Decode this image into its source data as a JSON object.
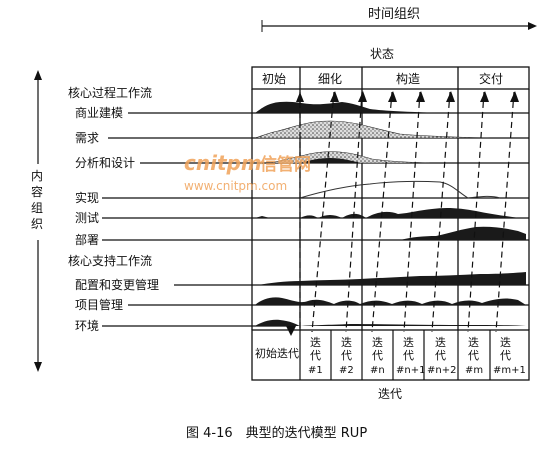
{
  "top_axis_label": "时间组织",
  "phase_header": "状态",
  "phases": [
    "初始",
    "细化",
    "构造",
    "交付"
  ],
  "left_axis_label": [
    "内",
    "容",
    "组",
    "织"
  ],
  "core_process_title": "核心过程工作流",
  "core_process_items": [
    "商业建模",
    "需求",
    "分析和设计",
    "实现",
    "测试",
    "部署"
  ],
  "core_support_title": "核心支持工作流",
  "core_support_items": [
    "配置和变更管理",
    "项目管理",
    "环境"
  ],
  "iterations": [
    {
      "chars": [
        "初始迭代"
      ]
    },
    {
      "chars": [
        "迭",
        "代",
        "#1"
      ]
    },
    {
      "chars": [
        "迭",
        "代",
        "#2"
      ]
    },
    {
      "chars": [
        "迭",
        "代",
        "#n"
      ]
    },
    {
      "chars": [
        "迭",
        "代",
        "#n+1"
      ]
    },
    {
      "chars": [
        "迭",
        "代",
        "#n+2"
      ]
    },
    {
      "chars": [
        "迭",
        "代",
        "#m"
      ]
    },
    {
      "chars": [
        "迭",
        "代",
        "#m+1"
      ]
    }
  ],
  "bottom_axis_label": "迭代",
  "caption": "图 4-16　典型的迭代模型 RUP",
  "watermark": {
    "main": "cnitpm",
    "main_suffix": "信管网",
    "url": "www.cnitpm.com"
  },
  "colors": {
    "line": "#111111",
    "fill": "#1a1a1a",
    "watermark": "#f0a35a"
  }
}
